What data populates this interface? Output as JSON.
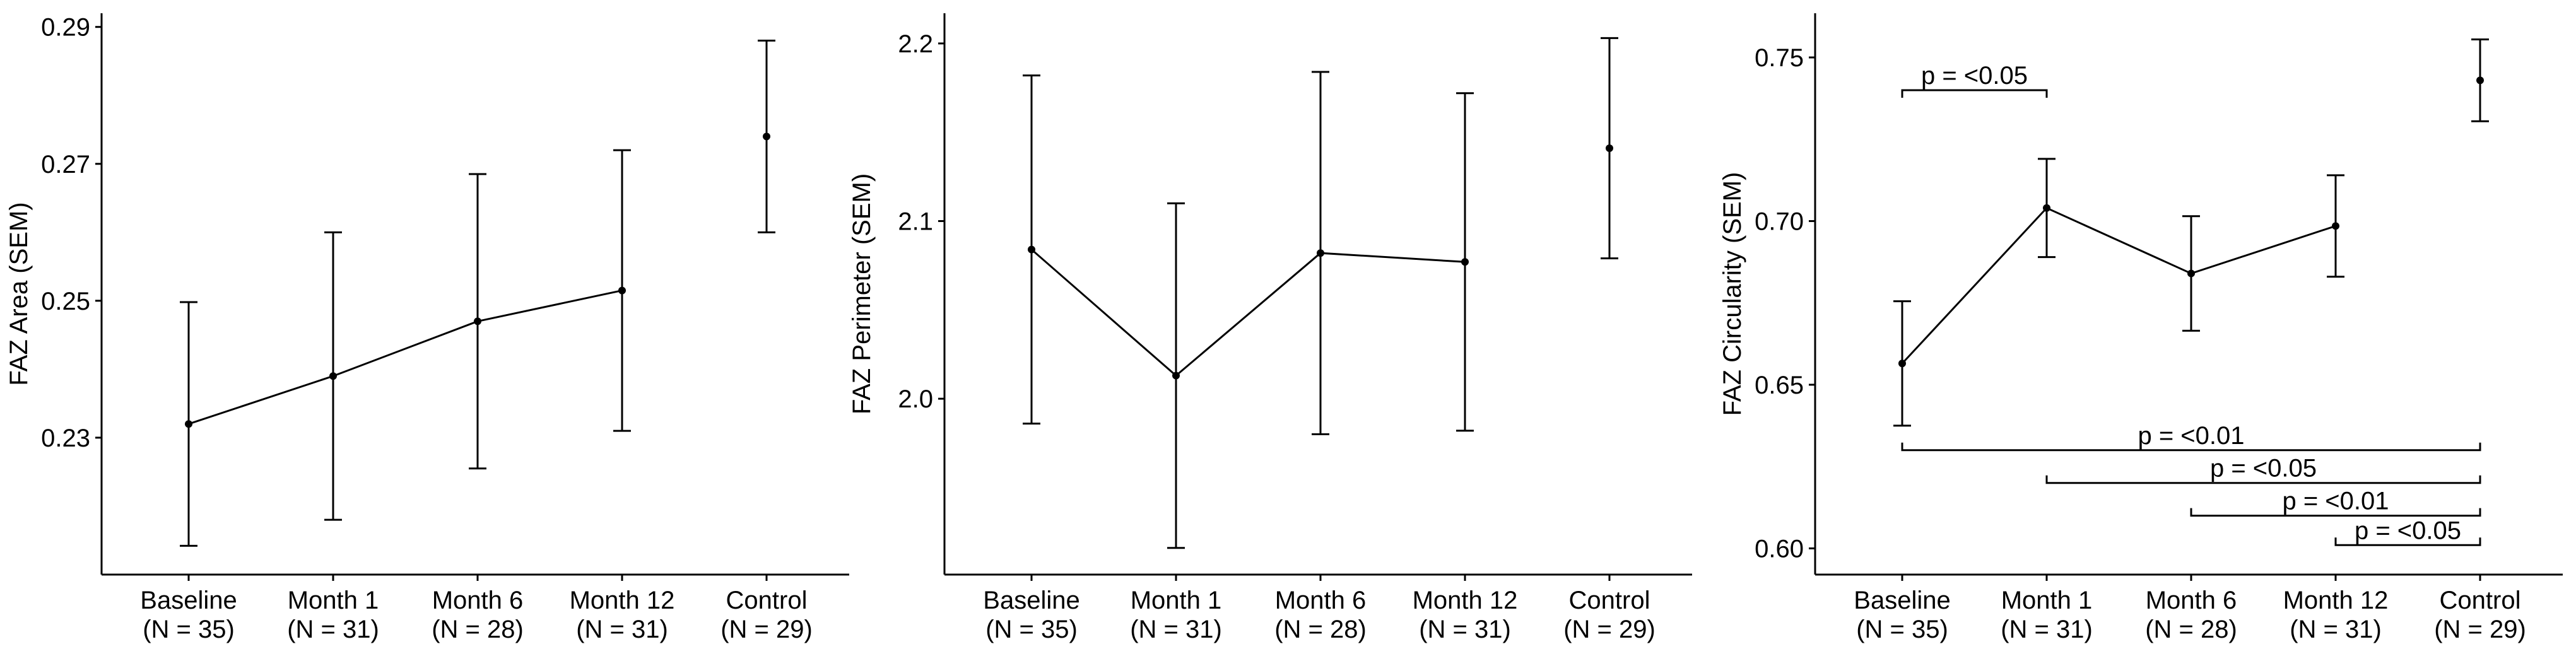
{
  "chart_data": [
    {
      "type": "line",
      "ylabel": "FAZ Area (SEM)",
      "categories": [
        "Baseline",
        "Month 1",
        "Month 6",
        "Month 12",
        "Control"
      ],
      "sample_sizes": [
        "(N = 35)",
        "(N = 31)",
        "(N = 28)",
        "(N = 31)",
        "(N = 29)"
      ],
      "series": [
        {
          "color": "#000000",
          "values": [
            0.232,
            0.239,
            0.247,
            0.2515,
            0.274
          ],
          "errors": [
            0.0178,
            0.021,
            0.0215,
            0.0205,
            0.014
          ],
          "connected": [
            true,
            true,
            true,
            true,
            false
          ]
        }
      ],
      "ylim": [
        0.21,
        0.292
      ],
      "yticks": [
        0.23,
        0.25,
        0.27,
        0.29
      ]
    },
    {
      "type": "line",
      "ylabel": "FAZ Perimeter (SEM)",
      "categories": [
        "Baseline",
        "Month 1",
        "Month 6",
        "Month 12",
        "Control"
      ],
      "sample_sizes": [
        "(N = 35)",
        "(N = 31)",
        "(N = 28)",
        "(N = 31)",
        "(N = 29)"
      ],
      "series": [
        {
          "color": "#000000",
          "values": [
            2.084,
            2.013,
            2.082,
            2.077,
            2.141
          ],
          "errors": [
            0.098,
            0.097,
            0.102,
            0.095,
            0.062
          ],
          "connected": [
            true,
            true,
            true,
            true,
            false
          ]
        }
      ],
      "ylim": [
        1.901,
        2.217
      ],
      "yticks": [
        {
          "value": 2,
          "label": "2.0"
        },
        2.1,
        2.2
      ]
    },
    {
      "type": "line",
      "ylabel": "FAZ Circularity (SEM)",
      "categories": [
        "Baseline",
        "Month 1",
        "Month 6",
        "Month 12",
        "Control"
      ],
      "sample_sizes": [
        "(N = 35)",
        "(N = 31)",
        "(N = 28)",
        "(N = 31)",
        "(N = 29)"
      ],
      "series": [
        {
          "color": "#000000",
          "values": [
            0.6565,
            0.704,
            0.684,
            0.6985,
            0.743
          ],
          "errors": [
            0.019,
            0.015,
            0.0175,
            0.0155,
            0.0125
          ],
          "connected": [
            true,
            true,
            true,
            true,
            false
          ]
        }
      ],
      "ylim": [
        0.592,
        0.7635
      ],
      "yticks": [
        {
          "value": 0.6,
          "label": "0.60"
        },
        0.65,
        {
          "value": 0.7,
          "label": "0.70"
        },
        0.75
      ],
      "brackets": [
        {
          "text": "p = <0.05",
          "from": 0,
          "to": 1,
          "y": 0.74
        },
        {
          "text": "p = <0.01",
          "from": 0,
          "to": 4,
          "y": 0.63
        },
        {
          "text": "p = <0.05",
          "from": 1,
          "to": 4,
          "y": 0.62
        },
        {
          "text": "p = <0.01",
          "from": 2,
          "to": 4,
          "y": 0.61
        },
        {
          "text": "p = <0.05",
          "from": 3,
          "to": 4,
          "y": 0.601
        }
      ]
    }
  ]
}
